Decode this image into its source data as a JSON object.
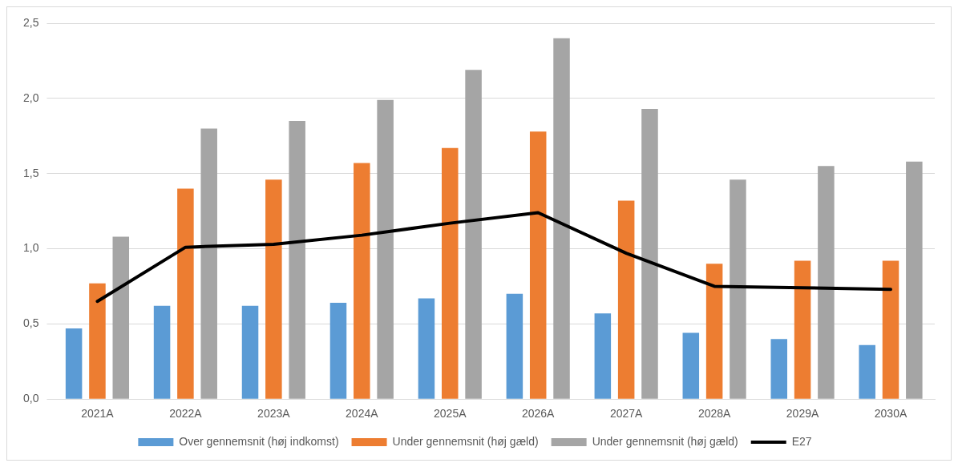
{
  "chart_data": {
    "type": "bar",
    "categories": [
      "2021A",
      "2022A",
      "2023A",
      "2024A",
      "2025A",
      "2026A",
      "2027A",
      "2028A",
      "2029A",
      "2030A"
    ],
    "series": [
      {
        "name": "Over gennemsnit (høj indkomst)",
        "color": "#5b9bd5",
        "values": [
          0.47,
          0.62,
          0.62,
          0.64,
          0.67,
          0.7,
          0.57,
          0.44,
          0.4,
          0.36
        ]
      },
      {
        "name": "Under gennemsnit (høj gæld)",
        "color": "#ed7d31",
        "values": [
          0.77,
          1.4,
          1.46,
          1.57,
          1.67,
          1.78,
          1.32,
          0.9,
          0.92,
          0.92
        ]
      },
      {
        "name": "Under gennemsnit (høj gæld)",
        "color": "#a5a5a5",
        "values": [
          1.08,
          1.8,
          1.85,
          1.99,
          2.19,
          2.4,
          1.93,
          1.46,
          1.55,
          1.58
        ]
      },
      {
        "name": "E27",
        "type": "line",
        "color": "#000000",
        "values": [
          0.65,
          1.01,
          1.03,
          1.09,
          1.17,
          1.24,
          0.97,
          0.75,
          0.74,
          0.73
        ]
      }
    ],
    "ylim": [
      0,
      2.5
    ],
    "yticks": [
      {
        "value": 0,
        "label": "0,0"
      },
      {
        "value": 0.5,
        "label": "0,5"
      },
      {
        "value": 1,
        "label": "1,0"
      },
      {
        "value": 1.5,
        "label": "1,5"
      },
      {
        "value": 2,
        "label": "2,0"
      },
      {
        "value": 2.5,
        "label": "2,5"
      }
    ],
    "grid": "y",
    "legend": "bottom",
    "marker": "none",
    "line_style": "solid"
  }
}
